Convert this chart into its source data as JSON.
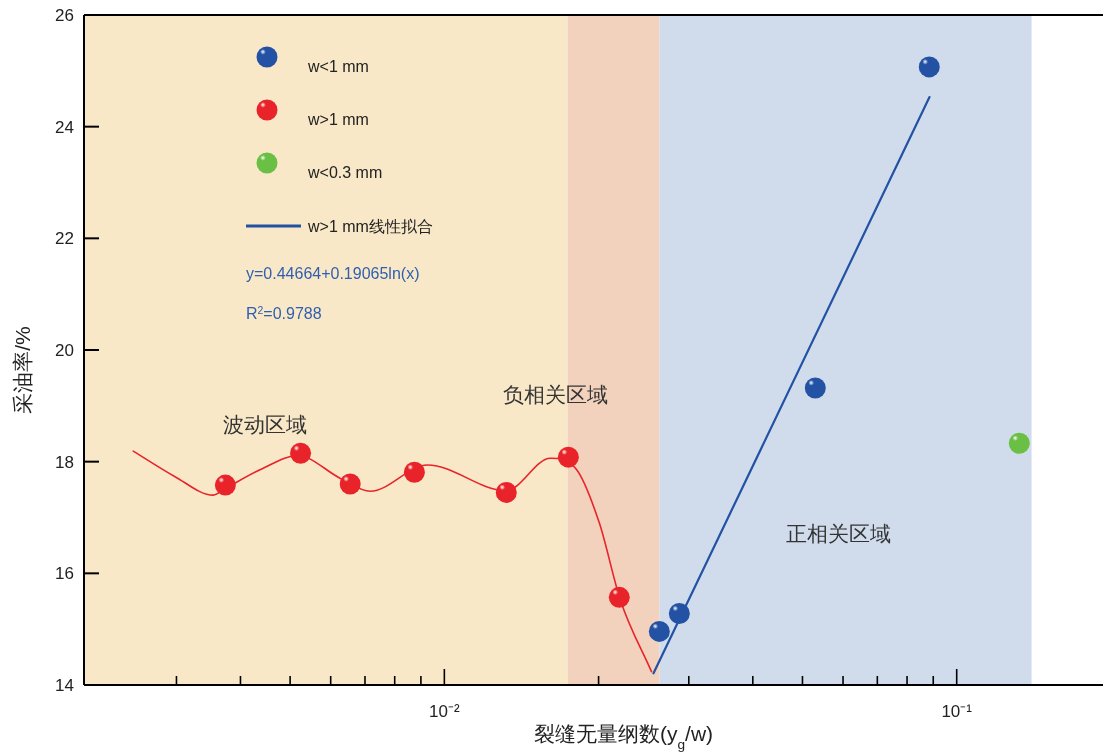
{
  "chart_data": {
    "type": "scatter",
    "xlabel": "裂缝无量纲数(y$_{g}$/w)",
    "ylabel": "采油率/%",
    "log": "x",
    "xlim": [
      0.00198,
      0.193
    ],
    "ylim": [
      14,
      26
    ],
    "yticks": [
      14,
      16,
      18,
      20,
      22,
      24,
      26
    ],
    "xticks": [
      {
        "value": 0.003,
        "label": null
      },
      {
        "value": 0.004,
        "label": null
      },
      {
        "value": 0.005,
        "label": null
      },
      {
        "value": 0.006,
        "label": null
      },
      {
        "value": 0.007,
        "label": null
      },
      {
        "value": 0.008,
        "label": null
      },
      {
        "value": 0.009,
        "label": null
      },
      {
        "value": 0.01,
        "label": "10⁻²"
      },
      {
        "value": 0.02,
        "label": null
      },
      {
        "value": 0.03,
        "label": null
      },
      {
        "value": 0.04,
        "label": null
      },
      {
        "value": 0.05,
        "label": null
      },
      {
        "value": 0.06,
        "label": null
      },
      {
        "value": 0.07,
        "label": null
      },
      {
        "value": 0.08,
        "label": null
      },
      {
        "value": 0.09,
        "label": null
      },
      {
        "value": 0.1,
        "label": "10⁻¹"
      }
    ],
    "legend": "top left",
    "marker": "circle",
    "bands": [
      {
        "axis": "x",
        "from": 0.00198,
        "to": 0.0174,
        "label": "波动区域",
        "color": "#f8e8c8"
      },
      {
        "axis": "x",
        "from": 0.0174,
        "to": 0.0263,
        "label": "负相关区域",
        "color": "#f2d2bd"
      },
      {
        "axis": "x",
        "from": 0.0263,
        "to": 0.14,
        "label": "正相关区域",
        "color": "#d0dcec"
      }
    ],
    "series": [
      {
        "name": "w<1 mm",
        "color": "#2352a4",
        "x": [
          0.02628,
          0.02875,
          0.05297,
          0.0884
        ],
        "values": [
          14.96,
          15.28,
          19.32,
          25.07
        ]
      },
      {
        "name": "w>1 mm",
        "color": "#e8242a",
        "x": [
          0.003738,
          0.00524,
          0.00655,
          0.00874,
          0.01321,
          0.01746,
          0.02195
        ],
        "values": [
          17.58,
          18.15,
          17.6,
          17.81,
          17.45,
          18.08,
          15.57
        ]
      },
      {
        "name": "w<0.3 mm",
        "color": "#6abf45",
        "x": [
          0.1325
        ],
        "values": [
          18.33
        ]
      },
      {
        "name": "w>1 mm线性拟合",
        "type": "line",
        "marker": "none",
        "color": "#2352a4",
        "x": [
          0.0256,
          0.0885
        ],
        "values": [
          14.21,
          24.53
        ]
      },
      {
        "type": "line",
        "marker": "none",
        "color": "#e8242a",
        "x": [
          0.00247,
          0.00297,
          0.00354,
          0.00374,
          0.0044,
          0.00517,
          0.00627,
          0.00717,
          0.00927,
          0.0132,
          0.0161,
          0.01811,
          0.02007,
          0.02206,
          0.02537
        ],
        "values": [
          18.19,
          17.74,
          17.4,
          17.52,
          17.87,
          18.11,
          17.7,
          17.47,
          17.94,
          17.48,
          18.06,
          17.86,
          16.9,
          15.52,
          14.24
        ]
      }
    ],
    "annotations": [
      "y=0.44664+0.19065ln(x)",
      "R$^{2}$=0.9788"
    ]
  }
}
